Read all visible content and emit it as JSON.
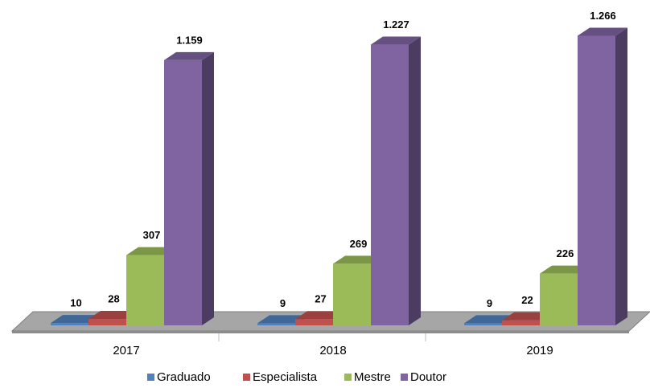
{
  "chart_data": {
    "type": "bar3d",
    "categories": [
      "2017",
      "2018",
      "2019"
    ],
    "series": [
      {
        "name": "Graduado",
        "color": "#4f81bd",
        "values": [
          10,
          9,
          9
        ]
      },
      {
        "name": "Especialista",
        "color": "#c0504d",
        "values": [
          28,
          27,
          22
        ]
      },
      {
        "name": "Mestre",
        "color": "#9bbb59",
        "values": [
          307,
          269,
          226
        ]
      },
      {
        "name": "Doutor",
        "color": "#8064a2",
        "values": [
          1159,
          1227,
          1266
        ],
        "value_labels": [
          "1.159",
          "1.227",
          "1.266"
        ]
      }
    ],
    "legend": "bottom"
  }
}
